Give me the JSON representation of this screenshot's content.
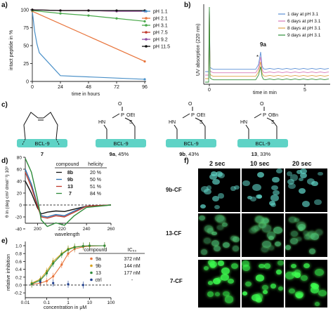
{
  "panel_letters": {
    "a": "a)",
    "b": "b)",
    "c": "c)",
    "d": "d)",
    "e": "e)",
    "f": "f)"
  },
  "panel_a": {
    "ylabel": "intact peptide in %",
    "xlabel": "time in hours",
    "yticks": [
      "0",
      "25",
      "50",
      "75",
      "100"
    ],
    "xticks": [
      "0",
      "24",
      "48",
      "72",
      "96"
    ],
    "legend": [
      "pH 1.1",
      "pH 2.1",
      "pH 3.1",
      "pH 7.5",
      "pH 9.2",
      "pH 11.5"
    ]
  },
  "panel_b": {
    "ylabel": "UV absorption (220 nm)",
    "xlabel": "time in min",
    "xticks": [
      "0",
      "5"
    ],
    "peak_label": "9a",
    "star": "*",
    "legend": [
      "1 day at pH 3.1",
      "6 days at pH 3.1",
      "8 days at pH 3.1",
      "9 days at pH 3.1"
    ]
  },
  "panel_c": {
    "structures": [
      {
        "box": "BCL-9",
        "number": "7",
        "yield": "",
        "group": ""
      },
      {
        "box": "BCL-9",
        "number": "9a",
        "yield": ", 45%",
        "group": "OEt"
      },
      {
        "box": "BCL-9",
        "number": "9b",
        "yield": ", 43%",
        "group": "OEt"
      },
      {
        "box": "BCL-9",
        "number": "13",
        "yield": ", 33%",
        "group": "OBn"
      }
    ],
    "atoms": {
      "hn": "HN",
      "p": "P",
      "o": "O",
      "s": "S"
    }
  },
  "panel_d": {
    "ylabel": "θ in (deg cm² dmol⁻¹) 10³",
    "xlabel": "wavelength",
    "yticks": [
      "80",
      "60",
      "40",
      "20",
      "0",
      "-20",
      "-40"
    ],
    "xticks": [
      "200",
      "220",
      "240",
      "260"
    ],
    "table_head": [
      "compound",
      "helicity"
    ],
    "table_rows": [
      [
        "8b",
        "20 %"
      ],
      [
        "9b",
        "50 %"
      ],
      [
        "13",
        "51 %"
      ],
      [
        "7",
        "84 %"
      ]
    ]
  },
  "panel_e": {
    "ylabel": "relative inhibition",
    "xlabel": "concentration in μM",
    "yticks": [
      "1.0",
      "0.8",
      "0.6",
      "0.4",
      "0.2",
      "0.0",
      "-0.2"
    ],
    "xticks": [
      "0.01",
      "0.1",
      "1",
      "10",
      "100"
    ],
    "table_head": [
      "compound",
      "IC₅₀"
    ],
    "table_rows": [
      [
        "9a",
        "372 nM"
      ],
      [
        "9b",
        "144 nM"
      ],
      [
        "13",
        "177 nM"
      ],
      [
        "ctrl",
        "-"
      ]
    ]
  },
  "panel_f": {
    "columns": [
      "2 sec",
      "10 sec",
      "20 sec"
    ],
    "rows": [
      "9b-CF",
      "13-CF",
      "7-CF"
    ]
  },
  "colors": {
    "ph11": "#4a90c8",
    "ph21": "#e8743b",
    "ph31": "#49a84a",
    "ph75": "#c0392b",
    "ph92": "#8e4fa3",
    "ph115": "#111111",
    "teal": "#5fd3c6",
    "bright_green": "#2ecc40"
  },
  "chart_data": [
    {
      "type": "line",
      "title": "",
      "xlabel": "time in hours",
      "ylabel": "intact peptide in %",
      "xlim": [
        0,
        96
      ],
      "ylim": [
        0,
        100
      ],
      "series": [
        {
          "name": "pH 1.1",
          "x": [
            0,
            2,
            4,
            6,
            24,
            96
          ],
          "y": [
            98,
            70,
            52,
            40,
            8,
            3
          ]
        },
        {
          "name": "pH 2.1",
          "x": [
            0,
            96
          ],
          "y": [
            98,
            28
          ]
        },
        {
          "name": "pH 3.1",
          "x": [
            0,
            24,
            48,
            72,
            96
          ],
          "y": [
            99,
            95,
            92,
            88,
            84
          ]
        },
        {
          "name": "pH 7.5",
          "x": [
            0,
            24,
            48,
            72,
            96
          ],
          "y": [
            100,
            99,
            99,
            98,
            98
          ]
        },
        {
          "name": "pH 9.2",
          "x": [
            0,
            24,
            48,
            72,
            96
          ],
          "y": [
            100,
            99,
            99,
            98,
            98
          ]
        },
        {
          "name": "pH 11.5",
          "x": [
            0,
            24,
            48,
            72,
            96
          ],
          "y": [
            100,
            99,
            99,
            99,
            99
          ]
        }
      ]
    },
    {
      "type": "line",
      "title": "",
      "xlabel": "time in min",
      "ylabel": "UV absorption (220 nm)",
      "xlim": [
        0,
        7
      ],
      "series": [
        {
          "name": "1 day at pH 3.1"
        },
        {
          "name": "6 days at pH 3.1"
        },
        {
          "name": "8 days at pH 3.1"
        },
        {
          "name": "9 days at pH 3.1"
        }
      ]
    },
    {
      "type": "line",
      "xlabel": "wavelength",
      "ylabel": "θ in (deg cm² dmol⁻¹) 10³",
      "xlim": [
        190,
        260
      ],
      "ylim": [
        -40,
        80
      ],
      "series": [
        {
          "name": "8b",
          "x": [
            190,
            195,
            200,
            203,
            208,
            215,
            222,
            230,
            240,
            260
          ],
          "y": [
            40,
            20,
            -5,
            -15,
            -12,
            -10,
            -11,
            -7,
            -2,
            0
          ]
        },
        {
          "name": "9b",
          "x": [
            190,
            195,
            200,
            203,
            208,
            215,
            222,
            230,
            240,
            260
          ],
          "y": [
            60,
            35,
            0,
            -18,
            -20,
            -16,
            -18,
            -10,
            -2,
            0
          ]
        },
        {
          "name": "13",
          "x": [
            190,
            195,
            200,
            203,
            208,
            215,
            222,
            230,
            240,
            260
          ],
          "y": [
            55,
            30,
            -2,
            -20,
            -22,
            -18,
            -20,
            -12,
            -2,
            0
          ]
        },
        {
          "name": "7",
          "x": [
            190,
            195,
            200,
            203,
            208,
            215,
            222,
            230,
            240,
            260
          ],
          "y": [
            78,
            55,
            10,
            -25,
            -36,
            -30,
            -34,
            -18,
            -4,
            0
          ]
        }
      ]
    },
    {
      "type": "scatter",
      "xlabel": "concentration in μM",
      "ylabel": "relative inhibition",
      "xscale": "log",
      "xlim": [
        0.01,
        100
      ],
      "ylim": [
        -0.2,
        1.0
      ],
      "series": [
        {
          "name": "9a",
          "x": [
            0.02,
            0.05,
            0.1,
            0.2,
            0.5,
            1,
            2,
            5,
            10,
            50
          ],
          "y": [
            0.02,
            0.05,
            0.1,
            0.22,
            0.52,
            0.8,
            0.92,
            0.97,
            0.99,
            1.0
          ]
        },
        {
          "name": "9b",
          "x": [
            0.02,
            0.05,
            0.1,
            0.2,
            0.5,
            1,
            2,
            5,
            10,
            50
          ],
          "y": [
            0.05,
            0.15,
            0.35,
            0.6,
            0.8,
            0.92,
            0.97,
            0.99,
            1.0,
            1.0
          ]
        },
        {
          "name": "13",
          "x": [
            0.02,
            0.05,
            0.1,
            0.2,
            0.5,
            1,
            2,
            5,
            10,
            50
          ],
          "y": [
            0.03,
            0.12,
            0.3,
            0.55,
            0.78,
            0.9,
            0.96,
            0.99,
            1.0,
            1.0
          ]
        },
        {
          "name": "ctrl",
          "x": [
            0.05,
            0.2,
            1,
            5
          ],
          "y": [
            0.08,
            0.05,
            0.02,
            0.0
          ]
        }
      ]
    }
  ]
}
